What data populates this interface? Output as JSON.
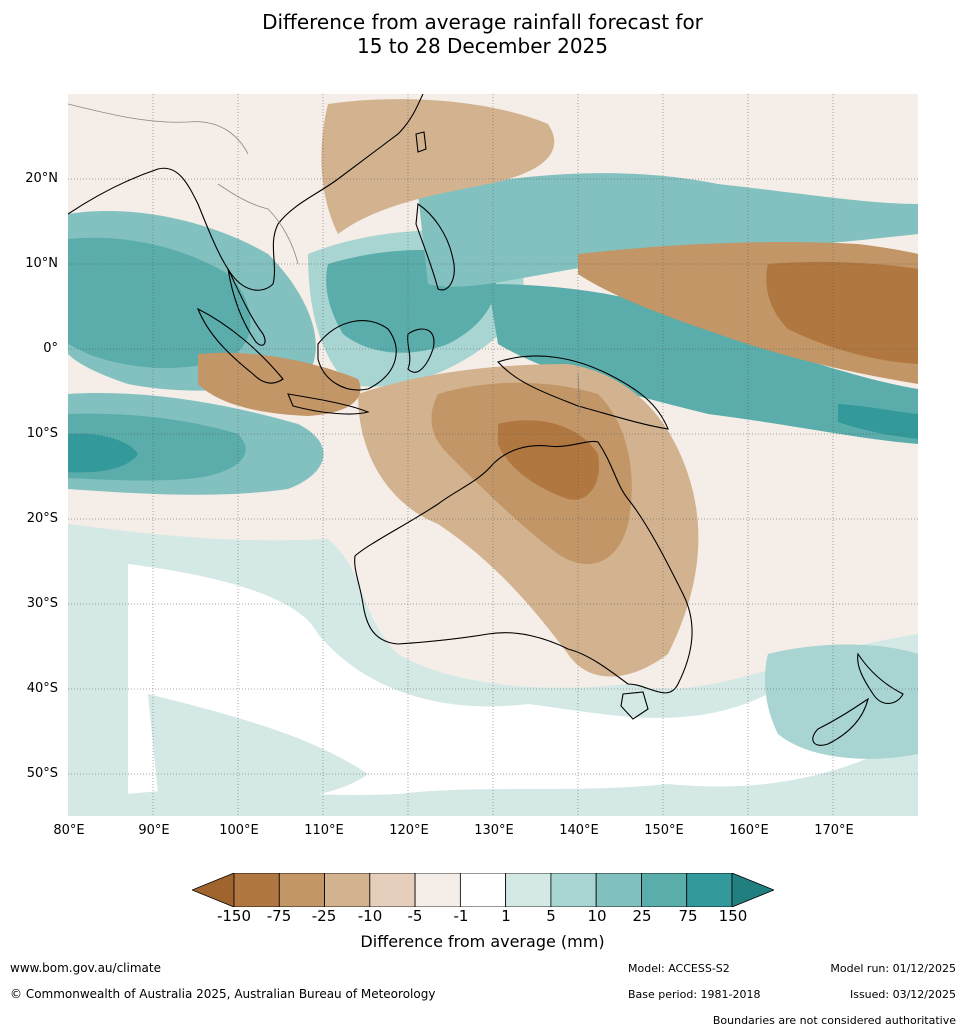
{
  "title_line1": "Difference from average rainfall forecast for",
  "title_line2": "15 to 28 December 2025",
  "map": {
    "lat_labels": [
      "20°N",
      "10°N",
      "0°",
      "10°S",
      "20°S",
      "30°S",
      "40°S",
      "50°S"
    ],
    "lon_labels": [
      "80°E",
      "90°E",
      "100°E",
      "110°E",
      "120°E",
      "130°E",
      "140°E",
      "150°E",
      "160°E",
      "170°E"
    ],
    "extent": {
      "lon": [
        80,
        180
      ],
      "lat": [
        -55,
        30
      ]
    }
  },
  "legend": {
    "ticks": [
      "-150",
      "-75",
      "-25",
      "-10",
      "-5",
      "-1",
      "1",
      "5",
      "10",
      "25",
      "75",
      "150"
    ],
    "colors": [
      "#a0652e",
      "#b07840",
      "#c29666",
      "#d3b38f",
      "#e5cfbc",
      "#f5ede7",
      "#ffffff",
      "#d4e9e6",
      "#a8d4d1",
      "#82c1bf",
      "#5aadab",
      "#33999a",
      "#217f80"
    ],
    "title": "Difference from average (mm)"
  },
  "footer": {
    "url": "www.bom.gov.au/climate",
    "copyright": "© Commonwealth of Australia 2025, Australian Bureau of Meteorology",
    "model": "Model: ACCESS-S2",
    "base_period": "Base period: 1981-2018",
    "model_run": "Model run: 01/12/2025",
    "issued": "Issued: 03/12/2025",
    "disclaimer": "Boundaries are not considered authoritative"
  }
}
